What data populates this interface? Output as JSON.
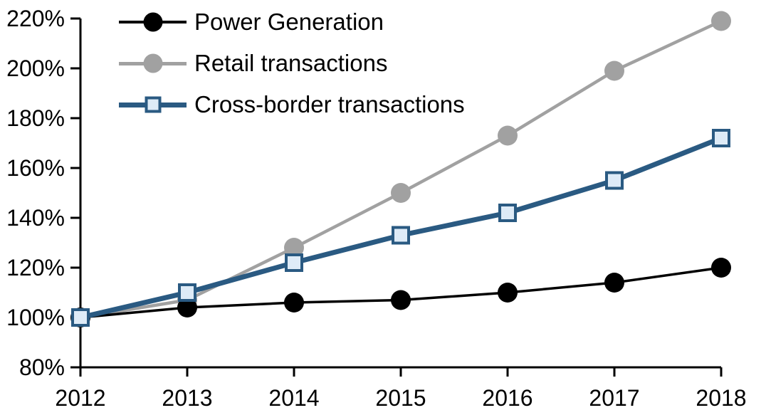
{
  "chart_data": {
    "type": "line",
    "title": "",
    "xlabel": "",
    "ylabel": "",
    "x_labels": [
      "2012",
      "2013",
      "2014",
      "2015",
      "2016",
      "2017",
      "2018"
    ],
    "y_tick_labels": [
      "80%",
      "100%",
      "120%",
      "140%",
      "160%",
      "180%",
      "200%",
      "220%"
    ],
    "y_ticks": [
      80,
      100,
      120,
      140,
      160,
      180,
      200,
      220
    ],
    "ylim": [
      80,
      220
    ],
    "unit": "%",
    "grid": false,
    "legend_position": "top-left-inside",
    "axis_color": "#000000",
    "series": [
      {
        "name": "Power Generation",
        "color": "#000000",
        "marker": "circle",
        "marker_fill": "#000000",
        "values": [
          100,
          104,
          106,
          107,
          110,
          114,
          120
        ]
      },
      {
        "name": "Retail transactions",
        "color": "#a1a1a1",
        "marker": "circle",
        "marker_fill": "#a1a1a1",
        "values": [
          100,
          107,
          128,
          150,
          173,
          199,
          219
        ]
      },
      {
        "name": "Cross-border transactions",
        "color": "#2a5a82",
        "marker": "square",
        "marker_fill": "#deebf7",
        "values": [
          100,
          110,
          122,
          133,
          142,
          155,
          172
        ]
      }
    ],
    "draw_order": [
      1,
      0,
      2
    ]
  }
}
